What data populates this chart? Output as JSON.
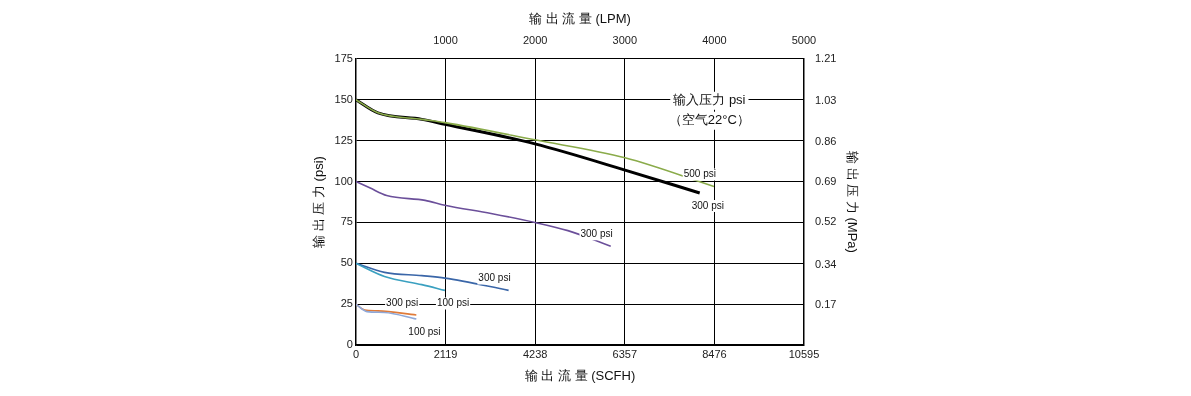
{
  "chart_data": {
    "type": "line",
    "xlabel": "输 出 流 量 (SCFH)",
    "x2label": "输 出 流 量 (LPM)",
    "ylabel": "输 出 压 力 (psi)",
    "y2label": "输 出 压 力 (MPa)",
    "annotations": [
      "输入压力 psi",
      "（空气22°C）"
    ],
    "xlim": [
      0,
      10595
    ],
    "xticks": [
      0,
      2119,
      4238,
      6357,
      8476,
      10595
    ],
    "x2lim": [
      0,
      5000
    ],
    "x2ticks": [
      1000,
      2000,
      3000,
      4000,
      5000
    ],
    "ylim": [
      0,
      175
    ],
    "yticks": [
      0,
      25,
      50,
      75,
      100,
      125,
      150,
      175
    ],
    "y2lim": [
      0,
      1.21
    ],
    "y2ticks": [
      0.17,
      0.34,
      0.52,
      0.69,
      0.86,
      1.03,
      1.21
    ],
    "grid": true,
    "legend": false,
    "marker": "none",
    "line_style": "solid",
    "series": [
      {
        "name": "500 psi",
        "color": "#8aab4a",
        "x": [
          0,
          519,
          1558,
          2104,
          4233,
          6363,
          8466
        ],
        "values": [
          150,
          142,
          138,
          136,
          125.5,
          114.5,
          97
        ]
      },
      {
        "name": "300 psi",
        "color": "#000000",
        "x": [
          0,
          519,
          1558,
          2104,
          4233,
          6363,
          8129
        ],
        "values": [
          150,
          142,
          138,
          135,
          123,
          107,
          93
        ]
      },
      {
        "name": "300 psi",
        "color": "#6b4f9a",
        "x": [
          0,
          338,
          727,
          1636,
          2104,
          3195,
          4233,
          5012,
          6025
        ],
        "values": [
          100,
          96,
          91.5,
          88.5,
          85.5,
          80.5,
          75,
          70,
          60.5
        ]
      },
      {
        "name": "100 psi",
        "color": "#3aa0c0",
        "x": [
          0,
          675,
          1558,
          2104
        ],
        "values": [
          50,
          42,
          37,
          33.5
        ]
      },
      {
        "name": "300 psi",
        "color": "#3a66a8",
        "x": [
          0,
          675,
          1558,
          2104,
          3610
        ],
        "values": [
          50,
          44.5,
          42.5,
          41,
          33.5
        ]
      },
      {
        "name": "100 psi",
        "color": "#8fa8d8",
        "x": [
          0,
          260,
          675,
          1428
        ],
        "values": [
          25,
          20.5,
          20,
          16
        ]
      },
      {
        "name": "300 psi",
        "color": "#e07b39",
        "x": [
          0,
          208,
          519,
          1428
        ],
        "values": [
          25,
          21.5,
          21,
          18.5
        ]
      }
    ]
  }
}
